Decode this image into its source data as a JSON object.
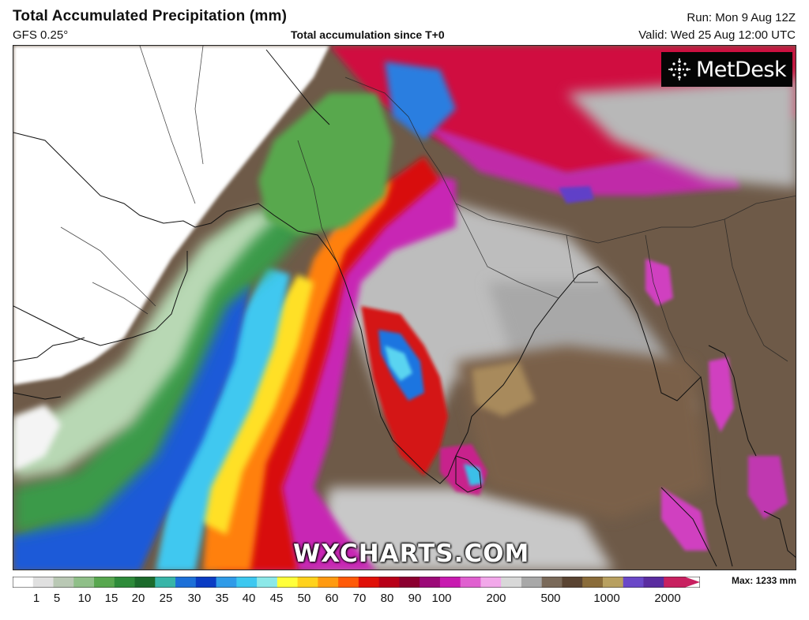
{
  "header": {
    "title": "Total Accumulated Precipitation (mm)",
    "model": "GFS 0.25°",
    "subtitle": "Total accumulation since T+0",
    "run": "Run: Mon 9 Aug 12Z",
    "valid": "Valid: Wed 25 Aug 12:00 UTC"
  },
  "logo": {
    "text": "MetDesk",
    "icon": "metdesk-dot-burst-icon"
  },
  "watermark": "WXCHARTS.COM",
  "legend": {
    "max_label": "Max: 1233 mm",
    "tick_labels": [
      "1",
      "5",
      "10",
      "15",
      "20",
      "25",
      "30",
      "35",
      "40",
      "45",
      "50",
      "60",
      "70",
      "80",
      "90",
      "100",
      "200",
      "500",
      "1000",
      "2000"
    ],
    "colors": [
      "#ffffff",
      "#e0e0e0",
      "#b9c8b4",
      "#8fbf88",
      "#58a74f",
      "#2e8b3a",
      "#1c6b2c",
      "#38b5a8",
      "#1d70d8",
      "#0a3cc4",
      "#2f9be8",
      "#3cc8f0",
      "#8be8e8",
      "#ffff3a",
      "#ffd21c",
      "#ff9a10",
      "#ff5a08",
      "#e01008",
      "#b80018",
      "#8c0030",
      "#9c0a78",
      "#c81ab0",
      "#e060d0",
      "#f2a8ea",
      "#d8d8d8",
      "#a8a8a8",
      "#7a6a5a",
      "#5a4432",
      "#8a6c3a",
      "#b8a060",
      "#6a48c8",
      "#5a2ca0",
      "#c82060"
    ]
  }
}
